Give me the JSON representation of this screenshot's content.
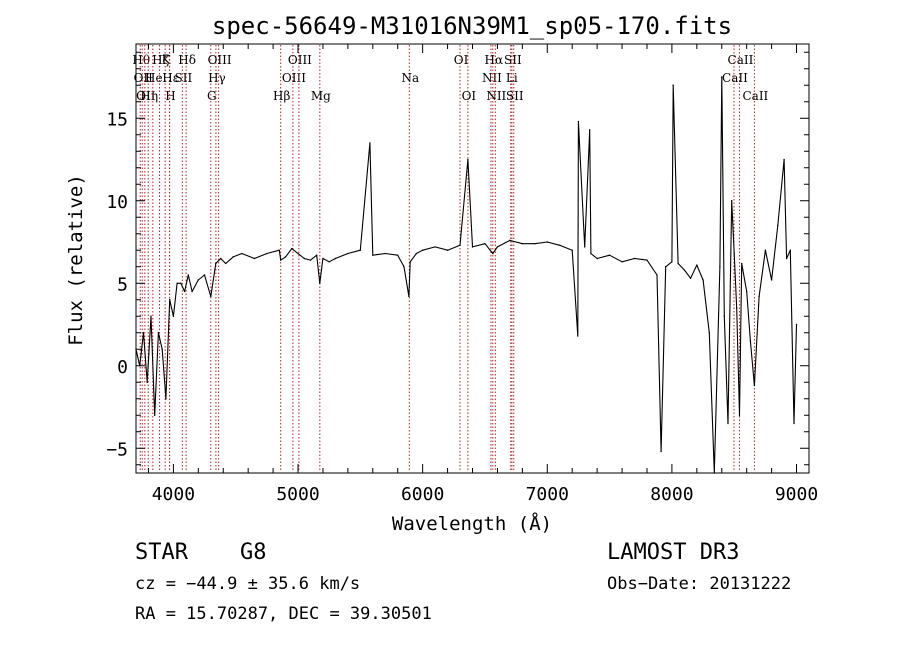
{
  "chart_data": {
    "type": "line",
    "title": "spec-56649-M31016N39M1_sp05-170.fits",
    "xlabel": "Wavelength (Å)",
    "ylabel": "Flux (relative)",
    "xlim": [
      3700,
      9100
    ],
    "ylim": [
      -6.5,
      19.5
    ],
    "xticks": [
      4000,
      5000,
      6000,
      7000,
      8000,
      9000
    ],
    "yticks": [
      -5,
      0,
      5,
      10,
      15
    ],
    "xtick_labels": [
      "4000",
      "5000",
      "6000",
      "7000",
      "8000",
      "9000"
    ],
    "ytick_labels": [
      "−5",
      "0",
      "5",
      "10",
      "15"
    ],
    "grid": false,
    "series": [
      {
        "name": "flux",
        "color": "#000000",
        "x": [
          3700,
          3730,
          3760,
          3790,
          3820,
          3850,
          3880,
          3910,
          3940,
          3970,
          4000,
          4030,
          4060,
          4090,
          4120,
          4150,
          4200,
          4250,
          4300,
          4340,
          4380,
          4420,
          4480,
          4550,
          4650,
          4750,
          4850,
          4861,
          4900,
          4950,
          5000,
          5050,
          5100,
          5150,
          5175,
          5200,
          5250,
          5300,
          5400,
          5500,
          5577,
          5600,
          5700,
          5800,
          5850,
          5890,
          5900,
          5950,
          6000,
          6100,
          6200,
          6300,
          6363,
          6400,
          6500,
          6563,
          6600,
          6700,
          6800,
          6900,
          7000,
          7100,
          7200,
          7245,
          7250,
          7300,
          7340,
          7350,
          7400,
          7500,
          7600,
          7700,
          7800,
          7880,
          7913,
          7950,
          8000,
          8010,
          8050,
          8100,
          8150,
          8200,
          8250,
          8300,
          8340,
          8385,
          8400,
          8420,
          8450,
          8480,
          8500,
          8520,
          8542,
          8560,
          8600,
          8630,
          8662,
          8700,
          8750,
          8800,
          8850,
          8900,
          8920,
          8950,
          8980,
          9000
        ],
        "values": [
          1,
          0,
          2,
          -1,
          3,
          -3,
          2,
          1,
          -2,
          4,
          3,
          5,
          5,
          4.5,
          5.5,
          4.5,
          5.2,
          5.5,
          4.2,
          6.2,
          6.5,
          6.2,
          6.6,
          6.8,
          6.5,
          6.8,
          7.0,
          6.4,
          6.6,
          7.1,
          6.8,
          6.5,
          6.4,
          6.7,
          5.0,
          6.5,
          6.3,
          6.5,
          6.8,
          7.0,
          13.5,
          6.7,
          6.8,
          6.7,
          6.0,
          4.2,
          6.3,
          6.8,
          7.0,
          7.2,
          7.0,
          7.3,
          12.5,
          7.2,
          7.4,
          6.8,
          7.2,
          7.6,
          7.4,
          7.4,
          7.5,
          7.3,
          7.0,
          1.8,
          14.8,
          7.2,
          14.3,
          6.8,
          6.5,
          6.7,
          6.3,
          6.5,
          6.4,
          5.5,
          -5.2,
          6.0,
          6.3,
          17.0,
          6.2,
          5.8,
          5.3,
          6.1,
          5.2,
          2.0,
          -6.5,
          6.0,
          17.5,
          3.0,
          -3.5,
          10.0,
          6.8,
          3.5,
          -3.0,
          6.2,
          4.5,
          1.5,
          -1.2,
          4.2,
          7.0,
          5.2,
          8.5,
          12.5,
          6.5,
          7.0,
          -3.5,
          2.5
        ]
      }
    ],
    "lines": [
      {
        "wl": 3734,
        "label": "Hθ",
        "row": 0
      },
      {
        "wl": 3750,
        "label": "OII",
        "row": 1
      },
      {
        "wl": 3771,
        "label": "OII",
        "row": 2
      },
      {
        "wl": 3798,
        "label": "Hη",
        "row": 2
      },
      {
        "wl": 3835,
        "label": "He",
        "row": 1
      },
      {
        "wl": 3889,
        "label": "Hζ",
        "row": 0
      },
      {
        "wl": 3934,
        "label": "K",
        "row": 0
      },
      {
        "wl": 3969,
        "label": "H",
        "row": 2
      },
      {
        "wl": 3970,
        "label": "Hε",
        "row": 1
      },
      {
        "wl": 4072,
        "label": "SII",
        "row": 1
      },
      {
        "wl": 4102,
        "label": "Hδ",
        "row": 0
      },
      {
        "wl": 4300,
        "label": "G",
        "row": 2
      },
      {
        "wl": 4341,
        "label": "Hγ",
        "row": 1
      },
      {
        "wl": 4363,
        "label": "OIII",
        "row": 0
      },
      {
        "wl": 4861,
        "label": "Hβ",
        "row": 2
      },
      {
        "wl": 4959,
        "label": "OIII",
        "row": 1
      },
      {
        "wl": 5007,
        "label": "OIII",
        "row": 0
      },
      {
        "wl": 5175,
        "label": "Mg",
        "row": 2
      },
      {
        "wl": 5893,
        "label": "Na",
        "row": 1
      },
      {
        "wl": 6300,
        "label": "OI",
        "row": 0
      },
      {
        "wl": 6363,
        "label": "OI",
        "row": 2
      },
      {
        "wl": 6548,
        "label": "NII",
        "row": 1
      },
      {
        "wl": 6563,
        "label": "Hα",
        "row": 0
      },
      {
        "wl": 6583,
        "label": "NII",
        "row": 2
      },
      {
        "wl": 6707,
        "label": "Li",
        "row": 1
      },
      {
        "wl": 6716,
        "label": "SII",
        "row": 0
      },
      {
        "wl": 6731,
        "label": "SII",
        "row": 2
      },
      {
        "wl": 8498,
        "label": "CaII",
        "row": 1
      },
      {
        "wl": 8542,
        "label": "CaII",
        "row": 0
      },
      {
        "wl": 8662,
        "label": "CaII",
        "row": 2
      }
    ],
    "line_color": "#b22222"
  },
  "info": {
    "class_label": "STAR",
    "subclass": "G8",
    "survey": "LAMOST DR3",
    "cz": "cz = −44.9 ± 35.6 km/s",
    "obs_date": "Obs−Date: 20131222",
    "radec": "RA =  15.70287, DEC =  39.30501"
  }
}
